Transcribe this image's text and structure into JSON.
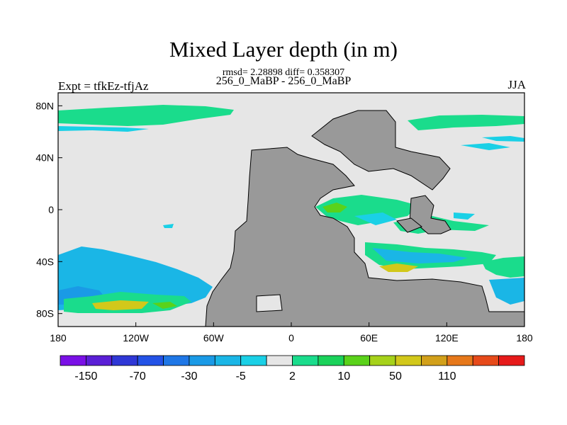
{
  "chart_data": {
    "type": "heatmap",
    "title": "Mixed Layer depth (in m)",
    "subtitle": "rmsd= 2.28898 diff= 0.358307",
    "experiment": "256_0_MaBP - 256_0_MaBP",
    "left_label": "Expt = tfkEz-tfjAz",
    "right_label": "JJA",
    "x_ticks": [
      "180",
      "120W",
      "60W",
      "0",
      "60E",
      "120E",
      "180"
    ],
    "y_ticks": [
      "80N",
      "40N",
      "0",
      "40S",
      "80S"
    ],
    "xlim": [
      -180,
      180
    ],
    "ylim": [
      -90,
      90
    ],
    "colorbar": {
      "colors": [
        "#7a10e6",
        "#5a1fd6",
        "#2f37d6",
        "#2352e6",
        "#1f77e6",
        "#1a9ae6",
        "#1ab6e6",
        "#1ad0e6",
        "#e6e6e6",
        "#1adc8c",
        "#1ad25a",
        "#5ad21a",
        "#a6d21a",
        "#d2c81a",
        "#d2a01a",
        "#e6781a",
        "#e64a1a",
        "#e61a1a"
      ],
      "labels": [
        "-150",
        "-70",
        "-30",
        "-5",
        "2",
        "10",
        "50",
        "110"
      ]
    },
    "colors": {
      "land": "#999999",
      "ocean_background": "#e6e6e6",
      "green": "#1adc8c",
      "light_green": "#5ad21a",
      "cyan": "#1ad0e6",
      "light_blue": "#1ab6e6",
      "blue": "#1a9ae6",
      "yellow": "#d2c81a"
    }
  }
}
